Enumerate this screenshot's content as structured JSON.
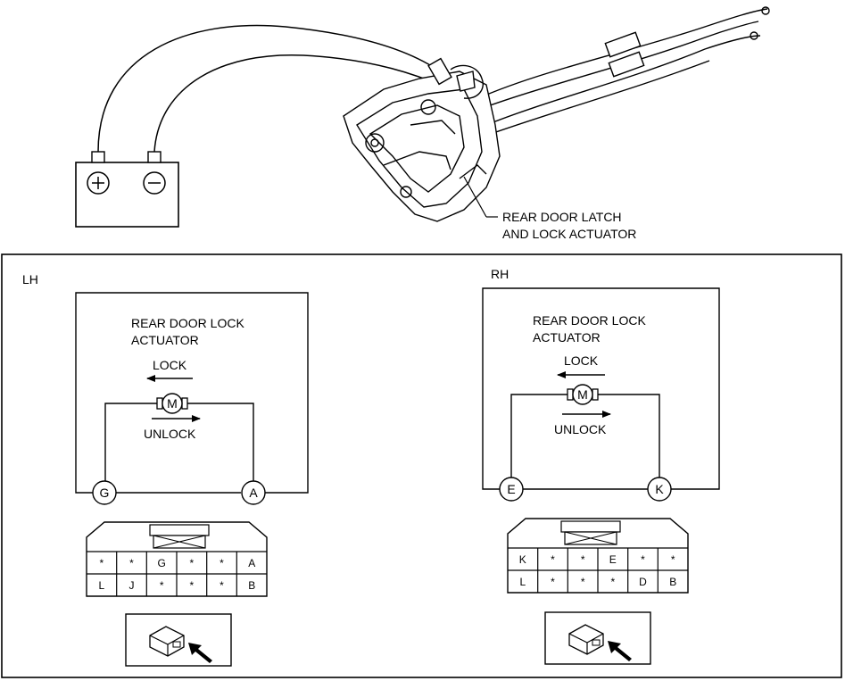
{
  "top": {
    "battery": {
      "positive_symbol": "+",
      "negative_symbol": "−"
    },
    "callout_line1": "REAR DOOR LATCH",
    "callout_line2": "AND LOCK ACTUATOR"
  },
  "lh": {
    "side_label": "LH",
    "title_line1": "REAR DOOR LOCK",
    "title_line2": "ACTUATOR",
    "motor_symbol": "M",
    "lock_label": "LOCK",
    "unlock_label": "UNLOCK",
    "terminal_left": "G",
    "terminal_right": "A",
    "connector_row1": [
      "*",
      "*",
      "G",
      "*",
      "*",
      "A"
    ],
    "connector_row2": [
      "L",
      "J",
      "*",
      "*",
      "*",
      "B"
    ]
  },
  "rh": {
    "side_label": "RH",
    "title_line1": "REAR DOOR LOCK",
    "title_line2": "ACTUATOR",
    "motor_symbol": "M",
    "lock_label": "LOCK",
    "unlock_label": "UNLOCK",
    "terminal_left": "E",
    "terminal_right": "K",
    "connector_row1": [
      "K",
      "*",
      "*",
      "E",
      "*",
      "*"
    ],
    "connector_row2": [
      "L",
      "*",
      "*",
      "*",
      "D",
      "B"
    ]
  }
}
